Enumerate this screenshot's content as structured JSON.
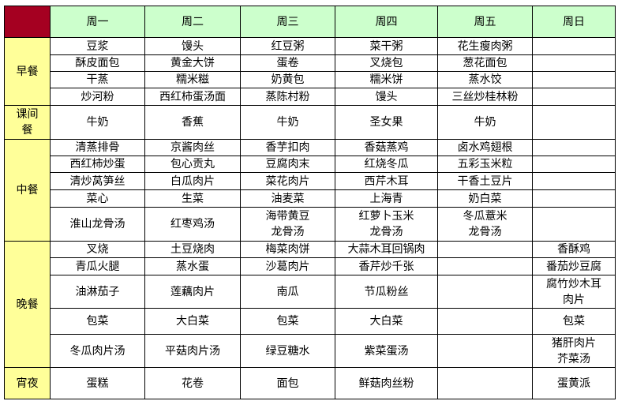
{
  "colors": {
    "corner": "#a50021",
    "header": "#ccffcc",
    "meal_label": "#ffff99"
  },
  "header": {
    "days": [
      "周一",
      "周二",
      "周三",
      "周四",
      "周五",
      "周日"
    ]
  },
  "meals": [
    {
      "label": "早餐",
      "rows": [
        [
          "豆浆",
          "馒头",
          "红豆粥",
          "菜干粥",
          "花生瘦肉粥",
          ""
        ],
        [
          "酥皮面包",
          "黄金大饼",
          "蛋卷",
          "叉烧包",
          "葱花面包",
          ""
        ],
        [
          "干蒸",
          "糯米糍",
          "奶黄包",
          "糯米饼",
          "蒸水饺",
          ""
        ],
        [
          "炒河粉",
          "西红柿蛋汤面",
          "蒸陈村粉",
          "馒头",
          "三丝炒桂林粉",
          ""
        ]
      ]
    },
    {
      "label": "课间\n餐",
      "rows": [
        [
          "牛奶",
          "香蕉",
          "牛奶",
          "圣女果",
          "牛奶",
          ""
        ]
      ]
    },
    {
      "label": "中餐",
      "rows": [
        [
          "清蒸排骨",
          "京酱肉丝",
          "香芋扣肉",
          "香菇蒸鸡",
          "卤水鸡翅根",
          ""
        ],
        [
          "西红柿炒蛋",
          "包心贡丸",
          "豆腐肉末",
          "红烧冬瓜",
          "五彩玉米粒",
          ""
        ],
        [
          "清炒莴笋丝",
          "白瓜肉片",
          "菜花肉片",
          "西芹木耳",
          "干香土豆片",
          ""
        ],
        [
          "菜心",
          "生菜",
          "油麦菜",
          "上海青",
          "奶白菜",
          ""
        ],
        [
          "淮山龙骨汤",
          "红枣鸡汤",
          "海带黄豆\n龙骨汤",
          "红萝卜玉米\n龙骨汤",
          "冬瓜薏米\n龙骨汤",
          ""
        ]
      ]
    },
    {
      "label": "晚餐",
      "rows": [
        [
          "叉烧",
          "土豆烧肉",
          "梅菜肉饼",
          "大蒜木耳回锅肉",
          "",
          "香酥鸡"
        ],
        [
          "青瓜火腿",
          "蒸水蛋",
          "沙葛肉片",
          "香芹炒千张",
          "",
          "番茄炒豆腐"
        ],
        [
          "油淋茄子",
          "莲藕肉片",
          "南瓜",
          "节瓜粉丝",
          "",
          "腐竹炒木耳\n肉片"
        ],
        [
          "包菜",
          "大白菜",
          "包菜",
          "大白菜",
          "",
          "包菜"
        ],
        [
          "冬瓜肉片汤",
          "平菇肉片汤",
          "绿豆糖水",
          "紫菜蛋汤",
          "",
          "猪肝肉片\n芥菜汤"
        ]
      ]
    },
    {
      "label": "宵夜",
      "rows": [
        [
          "蛋糕",
          "花卷",
          "面包",
          "鲜菇肉丝粉",
          "",
          "蛋黄派"
        ]
      ]
    }
  ]
}
